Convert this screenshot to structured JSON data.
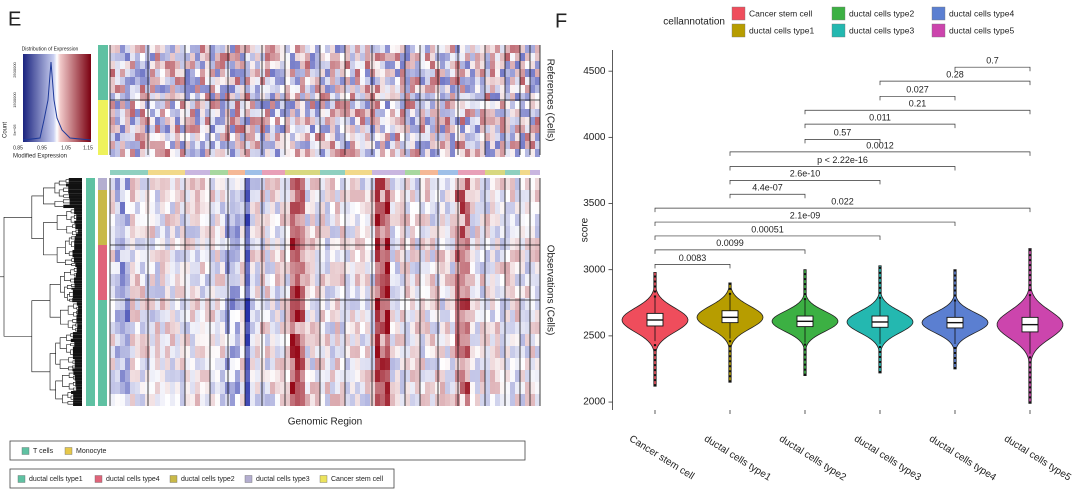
{
  "panel_e": {
    "label": "E",
    "color_key": {
      "title": "Distribution of Expression",
      "y_label": "Count",
      "y_ticks": [
        "2500000",
        "1500000",
        "5e+05"
      ],
      "x_label": "Modified Expression",
      "x_ticks": [
        "0.85",
        "0.95",
        "1.05",
        "1.15"
      ]
    },
    "references_label": "References (Cells)",
    "observations_label": "Observations (Cells)",
    "x_label": "Genomic Region",
    "legend_references": [
      {
        "name": "T cells",
        "color": "#5fc1a2"
      },
      {
        "name": "Monocyte",
        "color": "#e6c84a"
      }
    ],
    "legend_observations": [
      {
        "name": "ductal cells type1",
        "color": "#5fc1a2"
      },
      {
        "name": "ductal cells type4",
        "color": "#e0647a"
      },
      {
        "name": "ductal cells type2",
        "color": "#c9b948"
      },
      {
        "name": "ductal cells type3",
        "color": "#b4aed0"
      },
      {
        "name": "Cancer stem cell",
        "color": "#ece35c"
      }
    ]
  },
  "chart_data": {
    "type": "violin",
    "panel_label": "F",
    "legend_title": "cellannotation",
    "y_label": "score",
    "categories": [
      "Cancer stem cell",
      "ductal cells type1",
      "ductal cells type2",
      "ductal cells type3",
      "ductal cells type4",
      "ductal cells type5"
    ],
    "series": [
      {
        "name": "Cancer stem cell",
        "color": "#ef4d5c",
        "min": 2120,
        "whisker_low": 2460,
        "q1": 2575,
        "median": 2620,
        "q3": 2670,
        "whisker_high": 2790,
        "max": 2980
      },
      {
        "name": "ductal cells type1",
        "color": "#b79d00",
        "min": 2150,
        "whisker_low": 2480,
        "q1": 2600,
        "median": 2640,
        "q3": 2690,
        "whisker_high": 2810,
        "max": 2900
      },
      {
        "name": "ductal cells type2",
        "color": "#3cb043",
        "min": 2200,
        "whisker_low": 2450,
        "q1": 2570,
        "median": 2610,
        "q3": 2650,
        "whisker_high": 2770,
        "max": 3000
      },
      {
        "name": "ductal cells type3",
        "color": "#24b8b0",
        "min": 2220,
        "whisker_low": 2440,
        "q1": 2565,
        "median": 2605,
        "q3": 2650,
        "whisker_high": 2780,
        "max": 3030
      },
      {
        "name": "ductal cells type4",
        "color": "#5b7fd1",
        "min": 2250,
        "whisker_low": 2440,
        "q1": 2560,
        "median": 2600,
        "q3": 2640,
        "whisker_high": 2760,
        "max": 3000
      },
      {
        "name": "ductal cells type5",
        "color": "#cc45ad",
        "min": 1990,
        "whisker_low": 2370,
        "q1": 2530,
        "median": 2585,
        "q3": 2640,
        "whisker_high": 2800,
        "max": 3160
      }
    ],
    "ylim": [
      1940,
      4660
    ],
    "yticks": [
      2000,
      2500,
      3000,
      3500,
      4000,
      4500
    ],
    "comparisons": [
      {
        "groups": [
          "ductal cells type4",
          "ductal cells type5"
        ],
        "label": "0.7",
        "y": 4530
      },
      {
        "groups": [
          "ductal cells type3",
          "ductal cells type5"
        ],
        "label": "0.28",
        "y": 4425
      },
      {
        "groups": [
          "ductal cells type3",
          "ductal cells type4"
        ],
        "label": "0.027",
        "y": 4310
      },
      {
        "groups": [
          "ductal cells type2",
          "ductal cells type5"
        ],
        "label": "0.21",
        "y": 4205
      },
      {
        "groups": [
          "ductal cells type2",
          "ductal cells type4"
        ],
        "label": "0.011",
        "y": 4100
      },
      {
        "groups": [
          "ductal cells type2",
          "ductal cells type3"
        ],
        "label": "0.57",
        "y": 3985
      },
      {
        "groups": [
          "ductal cells type1",
          "ductal cells type5"
        ],
        "label": "0.0012",
        "y": 3890
      },
      {
        "groups": [
          "ductal cells type1",
          "ductal cells type4"
        ],
        "label": "p < 2.22e-16",
        "y": 3780
      },
      {
        "groups": [
          "ductal cells type1",
          "ductal cells type3"
        ],
        "label": "2.6e-10",
        "y": 3675
      },
      {
        "groups": [
          "ductal cells type1",
          "ductal cells type2"
        ],
        "label": "4.4e-07",
        "y": 3570
      },
      {
        "groups": [
          "Cancer stem cell",
          "ductal cells type5"
        ],
        "label": "0.022",
        "y": 3465
      },
      {
        "groups": [
          "Cancer stem cell",
          "ductal cells type4"
        ],
        "label": "2.1e-09",
        "y": 3360
      },
      {
        "groups": [
          "Cancer stem cell",
          "ductal cells type3"
        ],
        "label": "0.00051",
        "y": 3255
      },
      {
        "groups": [
          "Cancer stem cell",
          "ductal cells type2"
        ],
        "label": "0.0099",
        "y": 3150
      },
      {
        "groups": [
          "Cancer stem cell",
          "ductal cells type1"
        ],
        "label": "0.0083",
        "y": 3040
      }
    ]
  }
}
